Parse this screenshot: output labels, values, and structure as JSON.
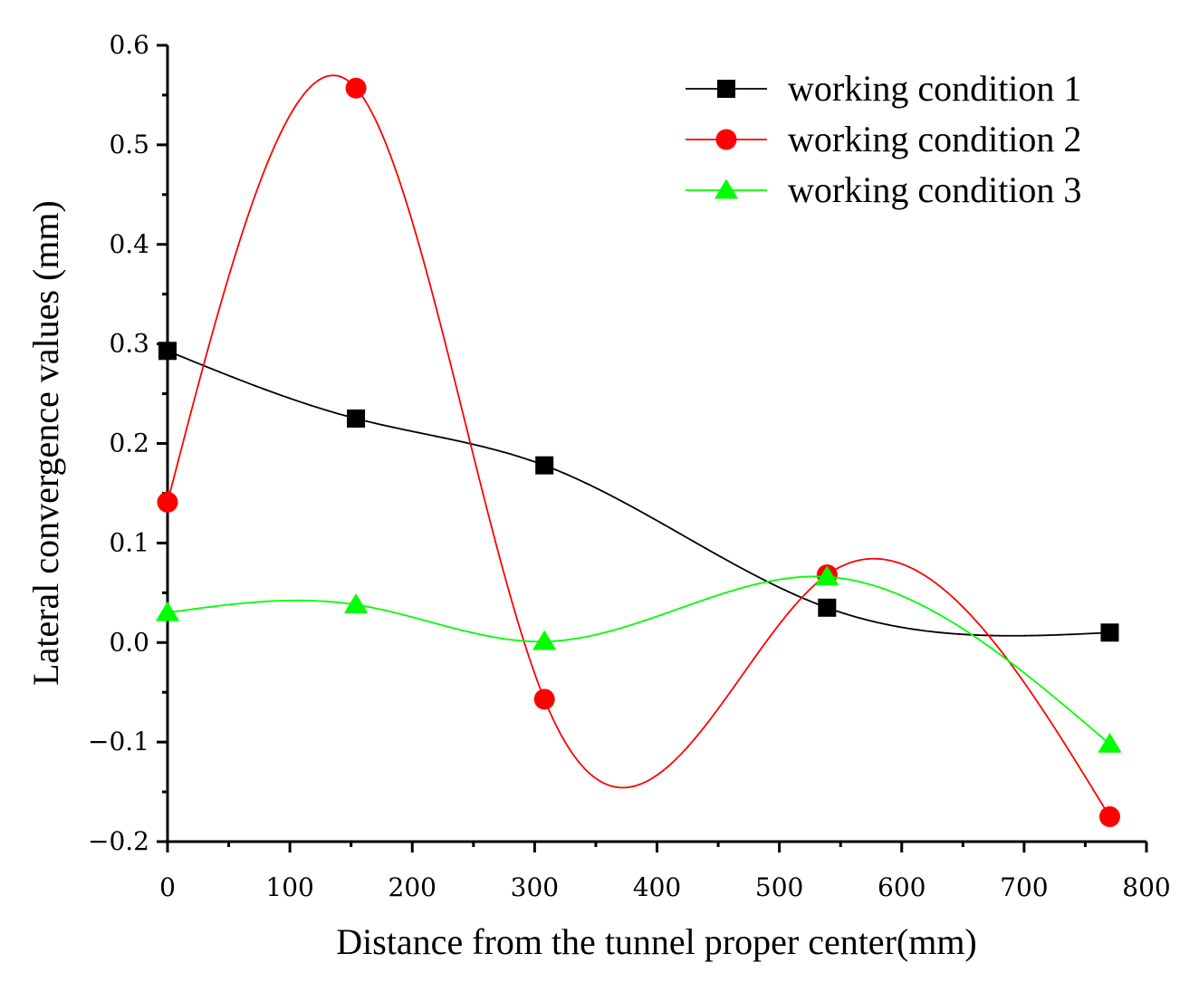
{
  "chart_data": {
    "type": "line",
    "smoothed": true,
    "title": "",
    "xlabel": "Distance from the tunnel proper center(mm)",
    "ylabel": "Lateral convergence values (mm)",
    "xlim": [
      0,
      800
    ],
    "ylim": [
      -0.2,
      0.6
    ],
    "xticks": [
      0,
      100,
      200,
      300,
      400,
      500,
      600,
      700,
      800
    ],
    "xtick_labels": [
      "0",
      "100",
      "200",
      "300",
      "400",
      "500",
      "600",
      "700",
      "800"
    ],
    "yticks": [
      -0.2,
      -0.1,
      0.0,
      0.1,
      0.2,
      0.3,
      0.4,
      0.5,
      0.6
    ],
    "ytick_labels": [
      "−0.2",
      "−0.1",
      "0.0",
      "0.1",
      "0.2",
      "0.3",
      "0.4",
      "0.5",
      "0.6"
    ],
    "legend_position": "top-right",
    "grid": false,
    "x": [
      0,
      154,
      308,
      539,
      770
    ],
    "series": [
      {
        "name": "working condition 1",
        "marker": "square",
        "color": "#000000",
        "values": [
          0.293,
          0.225,
          0.178,
          0.035,
          0.01
        ]
      },
      {
        "name": "working condition 2",
        "marker": "circle",
        "color": "#ff0000",
        "values": [
          0.141,
          0.557,
          -0.057,
          0.068,
          -0.175
        ]
      },
      {
        "name": "working condition 3",
        "marker": "triangle",
        "color": "#00ff00",
        "values": [
          0.03,
          0.038,
          0.001,
          0.066,
          -0.102
        ]
      }
    ]
  }
}
